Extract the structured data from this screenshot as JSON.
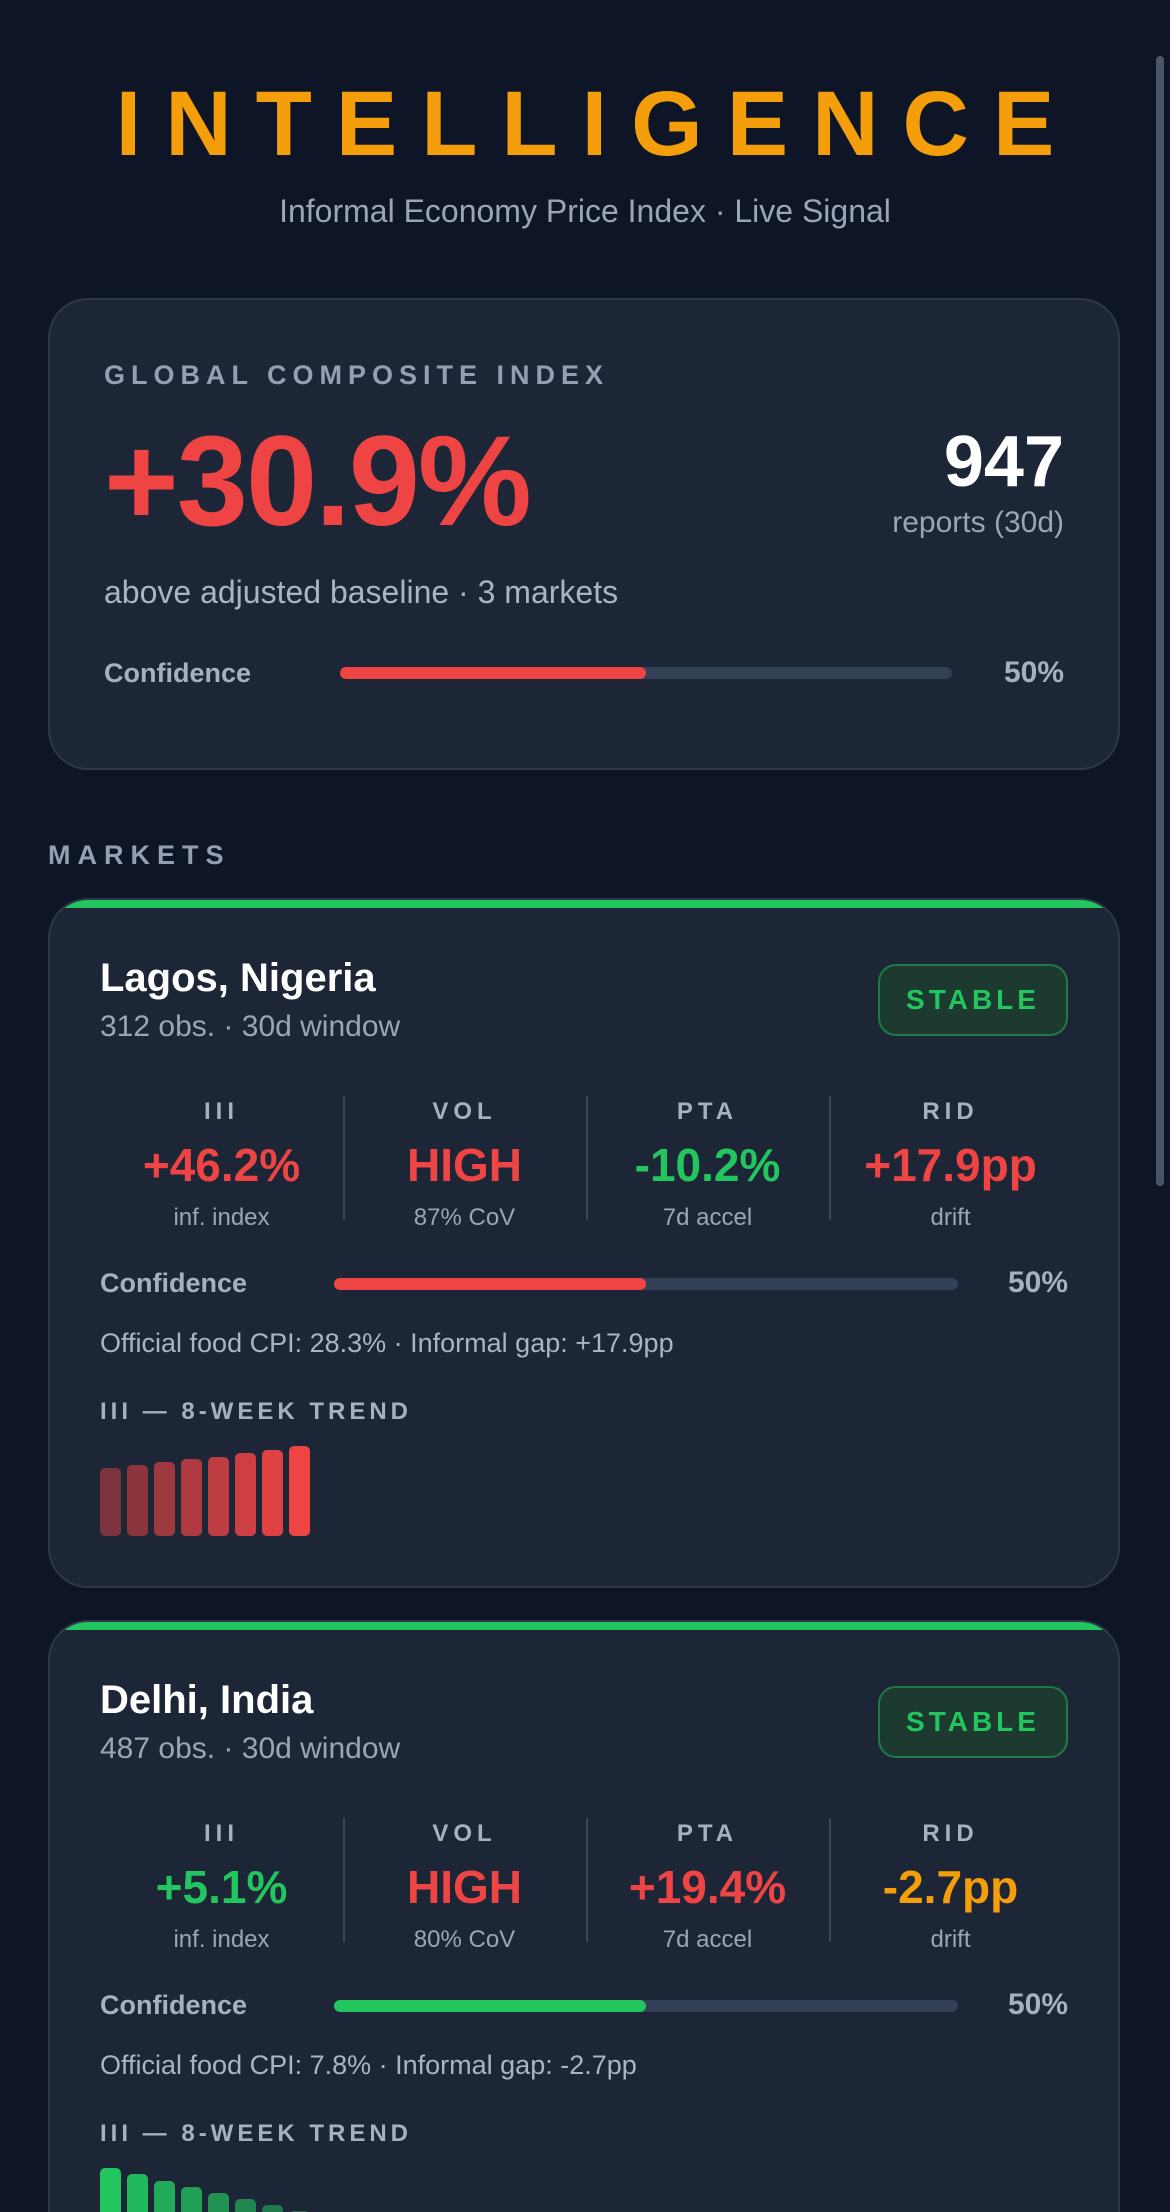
{
  "header": {
    "brand": "INTELLIGENCE",
    "tagline": "Informal Economy Price Index · Live Signal"
  },
  "global": {
    "kicker": "GLOBAL COMPOSITE INDEX",
    "value": "+30.9%",
    "report_count": "947",
    "report_label": "reports (30d)",
    "subtitle": "above adjusted baseline · 3 markets",
    "confidence_label": "Confidence",
    "confidence_text": "50%",
    "confidence_value": 0.5,
    "color": "#ef4444"
  },
  "section_label": "MARKETS",
  "markets": [
    {
      "city": "Lagos, Nigeria",
      "obs": "312 obs. · 30d window",
      "status": "STABLE",
      "accent_color": "#22c55e",
      "metrics": [
        {
          "name": "III",
          "value": "+46.2%",
          "sub": "inf. index",
          "color": "#ef4444"
        },
        {
          "name": "VOL",
          "value": "HIGH",
          "sub": "87% CoV",
          "color": "#ef4444"
        },
        {
          "name": "PTA",
          "value": "-10.2%",
          "sub": "7d accel",
          "color": "#22c55e"
        },
        {
          "name": "RID",
          "value": "+17.9pp",
          "sub": "drift",
          "color": "#ef4444"
        }
      ],
      "confidence_label": "Confidence",
      "confidence_text": "50%",
      "confidence_value": 0.5,
      "confidence_color": "#ef4444",
      "cpi_line": "Official food CPI: 28.3%  ·  Informal gap: +17.9pp",
      "trend_label": "III — 8-WEEK TREND",
      "trend_color": "#ef4444",
      "trend": [
        0.76,
        0.79,
        0.82,
        0.85,
        0.88,
        0.92,
        0.96,
        1.0
      ]
    },
    {
      "city": "Delhi, India",
      "obs": "487 obs. · 30d window",
      "status": "STABLE",
      "accent_color": "#22c55e",
      "metrics": [
        {
          "name": "III",
          "value": "+5.1%",
          "sub": "inf. index",
          "color": "#22c55e"
        },
        {
          "name": "VOL",
          "value": "HIGH",
          "sub": "80% CoV",
          "color": "#ef4444"
        },
        {
          "name": "PTA",
          "value": "+19.4%",
          "sub": "7d accel",
          "color": "#ef4444"
        },
        {
          "name": "RID",
          "value": "-2.7pp",
          "sub": "drift",
          "color": "#f59e0b"
        }
      ],
      "confidence_label": "Confidence",
      "confidence_text": "50%",
      "confidence_value": 0.5,
      "confidence_color": "#22c55e",
      "cpi_line": "Official food CPI: 7.8%  ·  Informal gap: -2.7pp",
      "trend_label": "III — 8-WEEK TREND",
      "trend_color": "#22c55e",
      "trend": [
        1.0,
        0.93,
        0.85,
        0.79,
        0.72,
        0.66,
        0.59,
        0.52
      ]
    }
  ]
}
